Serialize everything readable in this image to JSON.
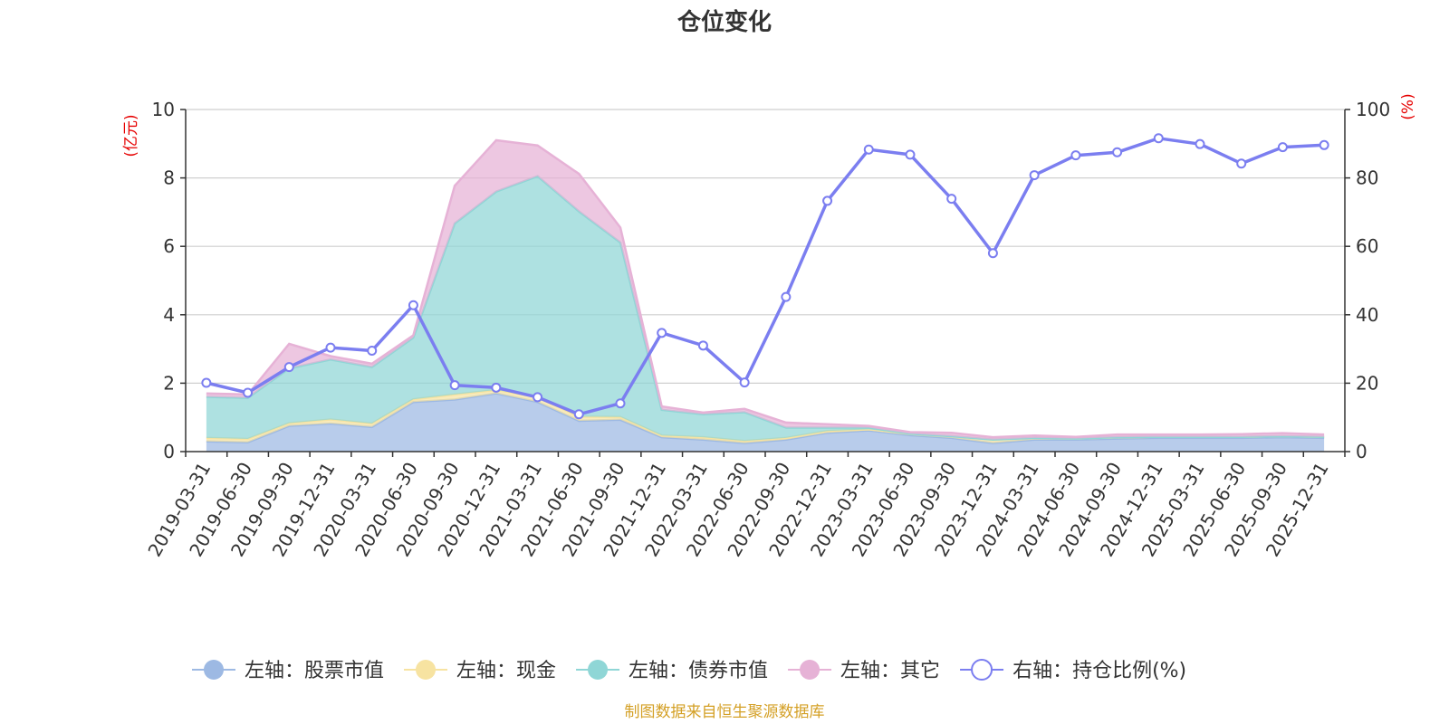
{
  "chart_data": {
    "type": "area",
    "title": "仓位变化",
    "left_axis_unit": "(亿元)",
    "right_axis_unit": "(%)",
    "left_ylim": [
      0,
      10
    ],
    "right_ylim": [
      0,
      100
    ],
    "left_ticks": [
      0,
      2,
      4,
      6,
      8,
      10
    ],
    "right_ticks": [
      0,
      20,
      40,
      60,
      80,
      100
    ],
    "categories": [
      "2019-03-31",
      "2019-06-30",
      "2019-09-30",
      "2019-12-31",
      "2020-03-31",
      "2020-06-30",
      "2020-09-30",
      "2020-12-31",
      "2021-03-31",
      "2021-06-30",
      "2021-09-30",
      "2021-12-31",
      "2022-03-31",
      "2022-06-30",
      "2022-09-30",
      "2022-12-31",
      "2023-03-31",
      "2023-06-30",
      "2023-09-30",
      "2023-12-31",
      "2024-03-31",
      "2024-06-30",
      "2024-09-30",
      "2024-12-31",
      "2025-03-31",
      "2025-06-30",
      "2025-09-30",
      "2025-12-31"
    ],
    "stacked_series": [
      {
        "name": "左轴：股票市值",
        "axis": "left",
        "color": "#9db9e3",
        "values": [
          0.3,
          0.27,
          0.75,
          0.82,
          0.72,
          1.45,
          1.52,
          1.7,
          1.45,
          0.9,
          0.93,
          0.42,
          0.35,
          0.25,
          0.35,
          0.55,
          0.62,
          0.48,
          0.4,
          0.25,
          0.35,
          0.35,
          0.38,
          0.4,
          0.4,
          0.4,
          0.42,
          0.4
        ]
      },
      {
        "name": "左轴：现金",
        "axis": "left",
        "color": "#f7e3a1",
        "values": [
          0.1,
          0.1,
          0.08,
          0.12,
          0.1,
          0.08,
          0.15,
          0.1,
          0.15,
          0.12,
          0.08,
          0.05,
          0.07,
          0.06,
          0.05,
          0.05,
          0.03,
          0.04,
          0.05,
          0.1,
          0.05,
          0.03,
          0.04,
          0.03,
          0.03,
          0.03,
          0.03,
          0.03
        ]
      },
      {
        "name": "左轴：债券市值",
        "axis": "left",
        "color": "#8fd6d6",
        "values": [
          1.2,
          1.2,
          1.6,
          1.75,
          1.65,
          1.8,
          5.0,
          5.8,
          6.45,
          6.0,
          5.1,
          0.75,
          0.67,
          0.84,
          0.3,
          0.1,
          0.05,
          0.0,
          0.0,
          0.0,
          0.0,
          0.0,
          0.0,
          0.0,
          0.0,
          0.0,
          0.0,
          0.0
        ]
      },
      {
        "name": "左轴：其它",
        "axis": "left",
        "color": "#e6b2d6",
        "values": [
          0.1,
          0.1,
          0.72,
          0.1,
          0.1,
          0.07,
          1.1,
          1.5,
          0.9,
          1.1,
          0.44,
          0.1,
          0.05,
          0.1,
          0.15,
          0.1,
          0.05,
          0.05,
          0.1,
          0.07,
          0.07,
          0.05,
          0.08,
          0.07,
          0.07,
          0.08,
          0.09,
          0.07
        ]
      }
    ],
    "line_series": {
      "name": "右轴：持仓比例(%)",
      "axis": "right",
      "color": "#7b7ef0",
      "values": [
        20.1,
        17.2,
        24.7,
        30.4,
        29.5,
        42.8,
        19.4,
        18.7,
        15.9,
        10.9,
        14.1,
        34.7,
        31.0,
        20.2,
        45.2,
        73.3,
        88.3,
        86.8,
        73.9,
        58.0,
        80.8,
        86.6,
        87.5,
        91.6,
        89.9,
        84.2,
        89.0,
        89.6
      ]
    },
    "legend_position": "bottom-center",
    "grid": true
  },
  "footer": {
    "source": "制图数据来自恒生聚源数据库"
  },
  "colors": {
    "left_unit": "#e60000",
    "right_unit": "#e60000",
    "source": "#d4a026",
    "text": "#333333"
  }
}
